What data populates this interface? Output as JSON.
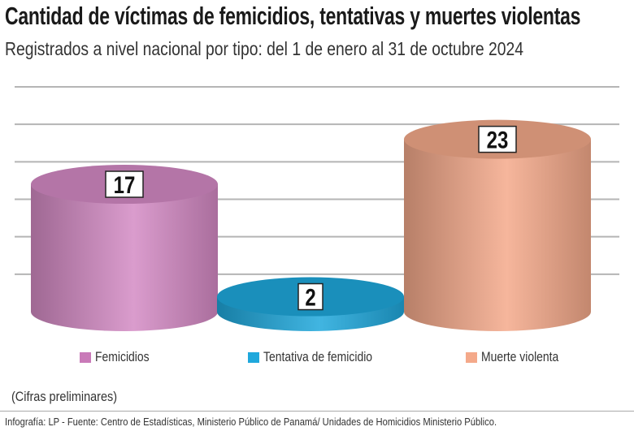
{
  "title": "Cantidad de víctimas de femicidios, tentativas y muertes violentas",
  "subtitle": "Registrados a nivel nacional por tipo: del 1 de enero al 31 de octubre 2024",
  "note": "(Cifras preliminares)",
  "footer": "Infografía: LP - Fuente: Centro de Estadísticas, Ministerio Público de Panamá/ Unidades de Homicidios Ministerio Público.",
  "chart_data": {
    "type": "bar",
    "style": "3d-cylinder",
    "categories": [
      "Femicidios",
      "Tentativa de femicidio",
      "Muerte violenta"
    ],
    "values": [
      17,
      2,
      23
    ],
    "labels": [
      "17",
      "2",
      "23"
    ],
    "colors": [
      "#d48ac4",
      "#1fa8dc",
      "#f4a98a"
    ],
    "ylim": [
      0,
      30
    ],
    "grid": true,
    "grid_step": 5,
    "legend": "bottom"
  }
}
